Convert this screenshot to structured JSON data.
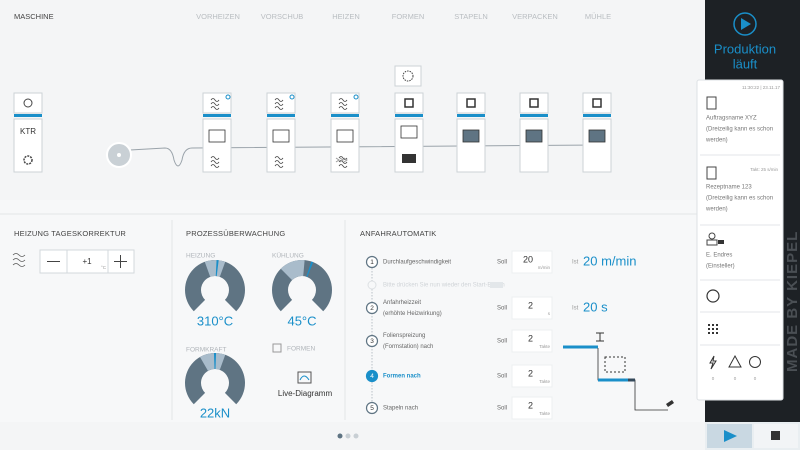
{
  "nav": {
    "items": [
      "MASCHINE",
      "VORHEIZEN",
      "VORSCHUB",
      "HEIZEN",
      "FORMEN",
      "STAPELN",
      "VERPACKEN",
      "MÜHLE"
    ]
  },
  "machine": {
    "ktr": "KTR"
  },
  "heating_correction": {
    "title": "HEIZUNG TAGESKORREKTUR",
    "value": "+1",
    "unit": "°C"
  },
  "process": {
    "title": "PROZESSÜBERWACHUNG",
    "heating": {
      "label": "HEIZUNG",
      "value": "310°C"
    },
    "cooling": {
      "label": "KÜHLUNG",
      "value": "45°C"
    },
    "force": {
      "label": "FORMKRAFT",
      "value": "22kN"
    },
    "forming_link": "FORMEN",
    "live": "Live-Diagramm"
  },
  "startup": {
    "title": "ANFAHRAUTOMATIK",
    "hint": "Bitte drücken Sie nun wieder den Start-Button",
    "steps": [
      {
        "number": "1",
        "label": [
          "Durchlaufgeschwindigkeit"
        ],
        "target_label": "Soll",
        "target": "20",
        "unit": "m/min",
        "actual_label": "Ist",
        "actual": "20 m/min"
      },
      {
        "number": "2",
        "label": [
          "Anfahrheizzeit",
          "(erhöhte Heizwirkung)"
        ],
        "target_label": "Soll",
        "target": "2",
        "unit": "s",
        "actual_label": "Ist",
        "actual": "20 s"
      },
      {
        "number": "3",
        "label": [
          "Folienspreizung",
          "(Formstation) nach"
        ],
        "target_label": "Soll",
        "target": "2",
        "unit": "Takte"
      },
      {
        "number": "4",
        "label": [
          "Formen nach"
        ],
        "target_label": "Soll",
        "target": "2",
        "unit": "Takte"
      },
      {
        "number": "5",
        "label": [
          "Stapeln nach"
        ],
        "target_label": "Soll",
        "target": "2",
        "unit": "Takte"
      }
    ]
  },
  "sidebar": {
    "status": [
      "Produktion",
      "läuft"
    ],
    "timestamp": "11:30:22 | 23.11.17",
    "order": [
      "Auftragsname XYZ",
      "(Dreizeilig kann es schon",
      "werden)"
    ],
    "cycle": "Takt: 25 s/min",
    "recipe": [
      "Rezeptname 123",
      "(Dreizeilig kann es schon",
      "werden)"
    ],
    "operator": [
      "E. Endres",
      "(Einsteller)"
    ],
    "counters": [
      "0",
      "0",
      "0"
    ],
    "brand": "MADE BY KIEPEL"
  }
}
